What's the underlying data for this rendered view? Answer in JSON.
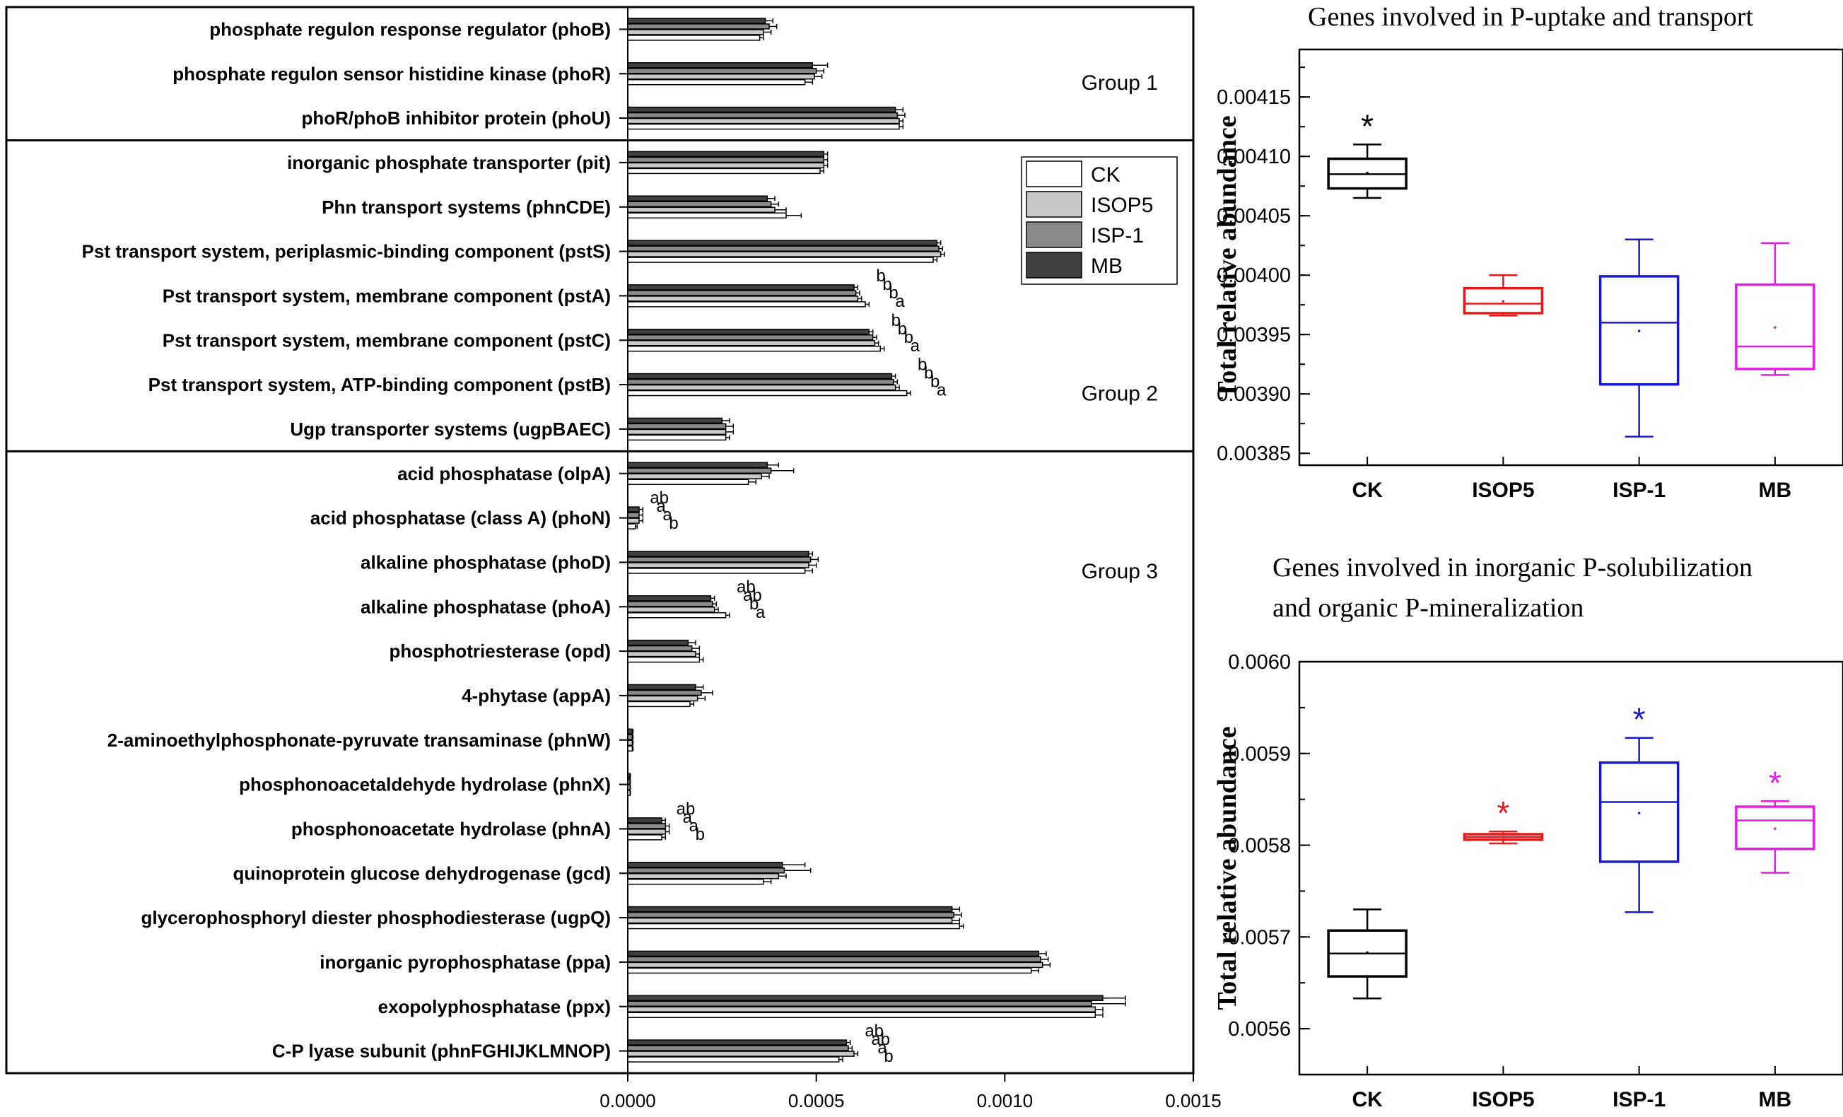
{
  "colors": {
    "CK": "#ffffff",
    "ISOP5": "#c8c8c8",
    "ISP-1": "#8a8a8a",
    "MB": "#404040",
    "box_CK": "#000000",
    "box_ISOP5": "#e41a1c",
    "box_ISP-1": "#1a1acd",
    "box_MB": "#e21ee2"
  },
  "chart_data": [
    {
      "type": "bar",
      "orientation": "horizontal",
      "title": "",
      "xlabel": "",
      "ylabel": "",
      "xlim": [
        0,
        0.0015
      ],
      "xticks": [
        "0.0000",
        "0.0005",
        "0.0010",
        "0.0015"
      ],
      "legend": {
        "position": "top-right",
        "entries": [
          "CK",
          "ISOP5",
          "ISP-1",
          "MB"
        ]
      },
      "group_labels": [
        "Group 1",
        "Group 2",
        "Group 3"
      ],
      "group_boundaries_after_row": [
        2,
        9
      ],
      "categories": [
        "phosphate regulon response regulator (phoB)",
        "phosphate regulon sensor histidine kinase (phoR)",
        "phoR/phoB inhibitor protein (phoU)",
        "inorganic phosphate transporter (pit)",
        "Phn transport systems (phnCDE)",
        "Pst transport system, periplasmic-binding component (pstS)",
        "Pst transport system, membrane component (pstA)",
        "Pst transport system, membrane component (pstC)",
        "Pst transport system, ATP-binding component (pstB)",
        "Ugp transporter systems (ugpBAEC)",
        "acid phosphatase (olpA)",
        "acid phosphatase (class A) (phoN)",
        "alkaline phosphatase (phoD)",
        "alkaline phosphatase (phoA)",
        "phosphotriesterase (opd)",
        "4-phytase (appA)",
        "2-aminoethylphosphonate-pyruvate transaminase (phnW)",
        "phosphonoacetaldehyde hydrolase (phnX)",
        "phosphonoacetate hydrolase (phnA)",
        "quinoprotein glucose dehydrogenase (gcd)",
        "glycerophosphoryl diester phosphodiesterase (ugpQ)",
        "inorganic pyrophosphatase (ppa)",
        "exopolyphosphatase (ppx)",
        "C-P lyase subunit (phnFGHIJKLMNOP)"
      ],
      "series": [
        {
          "name": "MB",
          "values": [
            0.000365,
            0.00049,
            0.00071,
            0.00052,
            0.00037,
            0.00082,
            0.0006,
            0.00064,
            0.0007,
            0.00025,
            0.00037,
            3e-05,
            0.00048,
            0.00022,
            0.00016,
            0.00018,
            1.2e-05,
            6e-06,
            9e-05,
            0.00041,
            0.00086,
            0.00109,
            0.00126,
            0.00058
          ],
          "errors": [
            2e-05,
            4e-05,
            2e-05,
            1e-05,
            2e-05,
            1e-05,
            1e-05,
            1e-05,
            1e-05,
            2e-05,
            3e-05,
            1e-05,
            1e-05,
            1e-05,
            2e-05,
            2e-05,
            2e-06,
            1e-06,
            1e-05,
            6e-05,
            2e-05,
            2e-05,
            6e-05,
            1e-05
          ]
        },
        {
          "name": "ISP-1",
          "values": [
            0.000375,
            0.0005,
            0.000715,
            0.00052,
            0.00038,
            0.000825,
            0.000605,
            0.00065,
            0.000705,
            0.00026,
            0.00038,
            3e-05,
            0.000485,
            0.000225,
            0.00017,
            0.000195,
            1.2e-05,
            6e-06,
            0.0001,
            0.000415,
            0.000865,
            0.001095,
            0.00123,
            0.000585
          ],
          "errors": [
            2e-05,
            2e-05,
            2e-05,
            1e-05,
            2e-05,
            1e-05,
            1e-05,
            1e-05,
            1e-05,
            2e-05,
            6e-05,
            1e-05,
            2e-05,
            1e-05,
            2e-05,
            3e-05,
            2e-06,
            1e-06,
            1e-05,
            7e-05,
            2e-05,
            2e-05,
            9e-05,
            1e-05
          ]
        },
        {
          "name": "ISOP5",
          "values": [
            0.00036,
            0.000495,
            0.00072,
            0.00052,
            0.00039,
            0.00083,
            0.00061,
            0.000655,
            0.00071,
            0.00026,
            0.000355,
            3e-05,
            0.00048,
            0.00023,
            0.00018,
            0.000185,
            1.2e-05,
            6e-06,
            0.0001,
            0.0004,
            0.00086,
            0.0011,
            0.00124,
            0.0006
          ],
          "errors": [
            2e-05,
            2e-05,
            1e-05,
            1e-05,
            3e-05,
            1e-05,
            1e-05,
            1e-05,
            1e-05,
            2e-05,
            2e-05,
            1e-05,
            2e-05,
            1e-05,
            1e-05,
            2e-05,
            2e-06,
            1e-06,
            1e-05,
            2e-05,
            2e-05,
            2e-05,
            2e-05,
            1e-05
          ]
        },
        {
          "name": "CK",
          "values": [
            0.00035,
            0.00047,
            0.00072,
            0.00051,
            0.00042,
            0.00081,
            0.00063,
            0.00067,
            0.00074,
            0.00026,
            0.00032,
            2e-05,
            0.00047,
            0.00026,
            0.00019,
            0.000165,
            1.2e-05,
            6e-06,
            9e-05,
            0.00036,
            0.00088,
            0.00107,
            0.00124,
            0.00056
          ],
          "errors": [
            1e-05,
            2e-05,
            1e-05,
            1e-05,
            4e-05,
            1e-05,
            1e-05,
            1e-05,
            1e-05,
            1e-05,
            2e-05,
            5e-06,
            2e-05,
            1e-05,
            1e-05,
            1e-05,
            2e-06,
            1e-06,
            1e-05,
            2e-05,
            1e-05,
            2e-05,
            2e-05,
            1e-05
          ]
        }
      ],
      "annotations": [
        {
          "category_index": 6,
          "letters": [
            "b",
            "b",
            "b",
            "a"
          ]
        },
        {
          "category_index": 7,
          "letters": [
            "b",
            "b",
            "b",
            "a"
          ]
        },
        {
          "category_index": 8,
          "letters": [
            "b",
            "b",
            "b",
            "a"
          ]
        },
        {
          "category_index": 11,
          "letters": [
            "ab",
            "a",
            "a",
            "b"
          ]
        },
        {
          "category_index": 13,
          "letters": [
            "ab",
            "ab",
            "b",
            "a"
          ]
        },
        {
          "category_index": 18,
          "letters": [
            "ab",
            "a",
            "a",
            "b"
          ]
        },
        {
          "category_index": 23,
          "letters": [
            "ab",
            "ab",
            "a",
            "b"
          ]
        }
      ]
    },
    {
      "type": "box",
      "title": "Genes involved in P-uptake and transport",
      "ylabel": "Total  relative abundance",
      "categories": [
        "CK",
        "ISOP5",
        "ISP-1",
        "MB"
      ],
      "ylim": [
        0.00384,
        0.00419
      ],
      "yticks": [
        "0.00385",
        "0.00390",
        "0.00395",
        "0.00400",
        "0.00405",
        "0.00410",
        "0.00415"
      ],
      "boxes": [
        {
          "name": "CK",
          "whisker_low": 0.004065,
          "q1": 0.004073,
          "median": 0.004085,
          "mean": 0.004086,
          "q3": 0.004098,
          "whisker_high": 0.00411,
          "significance": "*"
        },
        {
          "name": "ISOP5",
          "whisker_low": 0.003966,
          "q1": 0.003968,
          "median": 0.003976,
          "mean": 0.003978,
          "q3": 0.003989,
          "whisker_high": 0.004,
          "significance": ""
        },
        {
          "name": "ISP-1",
          "whisker_low": 0.003864,
          "q1": 0.003908,
          "median": 0.00396,
          "mean": 0.003953,
          "q3": 0.003999,
          "whisker_high": 0.00403,
          "significance": ""
        },
        {
          "name": "MB",
          "whisker_low": 0.003916,
          "q1": 0.003921,
          "median": 0.00394,
          "mean": 0.003956,
          "q3": 0.003992,
          "whisker_high": 0.004027,
          "significance": ""
        }
      ]
    },
    {
      "type": "box",
      "title": "Genes involved in inorganic P-solubilization and organic P-mineralization",
      "title_lines": [
        "Genes involved in inorganic P-solubilization",
        "and organic P-mineralization"
      ],
      "ylabel": "Total  relative abundance",
      "categories": [
        "CK",
        "ISOP5",
        "ISP-1",
        "MB"
      ],
      "ylim": [
        0.00555,
        0.006
      ],
      "yticks": [
        "0.0056",
        "0.0057",
        "0.0058",
        "0.0059",
        "0.0060"
      ],
      "boxes": [
        {
          "name": "CK",
          "whisker_low": 0.005633,
          "q1": 0.005657,
          "median": 0.005682,
          "mean": 0.005683,
          "q3": 0.005707,
          "whisker_high": 0.00573,
          "significance": ""
        },
        {
          "name": "ISOP5",
          "whisker_low": 0.005802,
          "q1": 0.005806,
          "median": 0.005809,
          "mean": 0.005809,
          "q3": 0.005812,
          "whisker_high": 0.005815,
          "significance": "*"
        },
        {
          "name": "ISP-1",
          "whisker_low": 0.005727,
          "q1": 0.005782,
          "median": 0.005847,
          "mean": 0.005835,
          "q3": 0.00589,
          "whisker_high": 0.005917,
          "significance": "*"
        },
        {
          "name": "MB",
          "whisker_low": 0.00577,
          "q1": 0.005796,
          "median": 0.005827,
          "mean": 0.005818,
          "q3": 0.005842,
          "whisker_high": 0.005848,
          "significance": "*"
        }
      ]
    }
  ]
}
